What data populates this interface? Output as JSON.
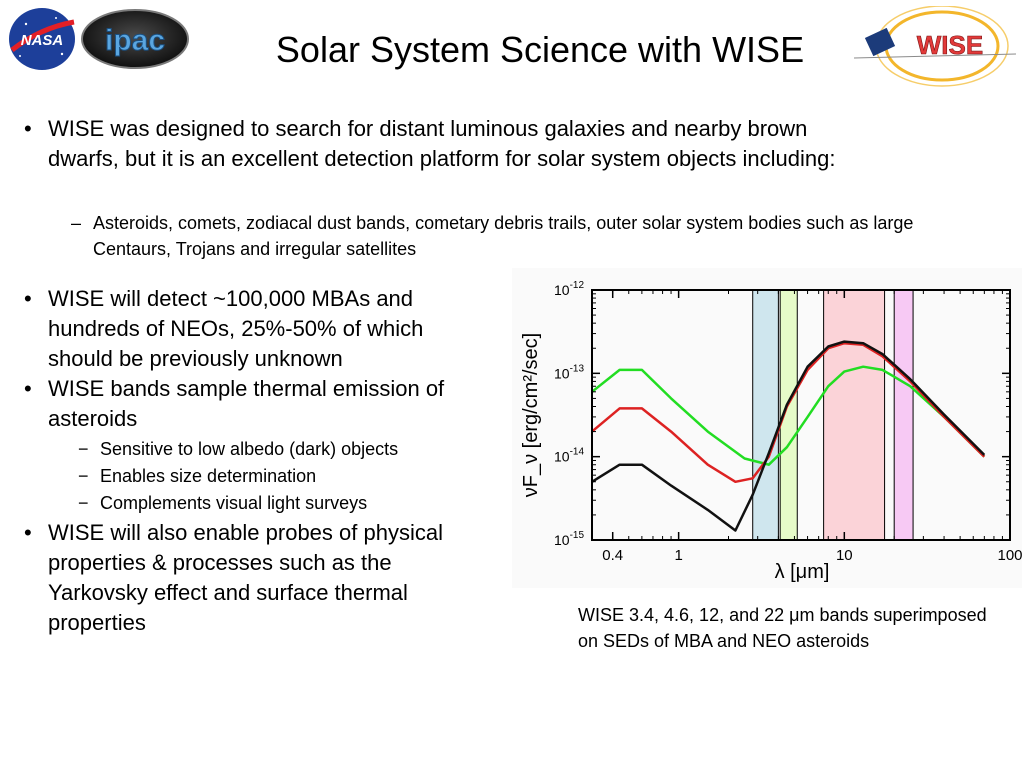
{
  "header": {
    "title": "Solar System Science with WISE",
    "logos": {
      "nasa": "NASA",
      "ipac": "ipac",
      "wise": "WISE"
    }
  },
  "bullets": {
    "b1": "WISE was designed to search for distant luminous galaxies and nearby brown dwarfs, but it is an excellent detection platform for solar system objects including:",
    "b1_sub1": "Asteroids, comets, zodiacal dust bands, cometary debris trails, outer solar system bodies such as large Centaurs, Trojans and irregular satellites",
    "b2": "WISE will detect ~100,000 MBAs and hundreds of NEOs, 25%-50% of which should be previously unknown",
    "b3": "WISE bands sample thermal emission of asteroids",
    "b3_sub1": "Sensitive to low albedo (dark) objects",
    "b3_sub2": "Enables size determination",
    "b3_sub3": "Complements visual light surveys",
    "b4": "WISE will also enable probes of physical properties & processes such as the Yarkovsky effect and surface thermal properties"
  },
  "caption": "WISE 3.4, 4.6, 12, and 22 μm bands superimposed on SEDs of MBA and NEO asteroids",
  "chart_data": {
    "type": "line",
    "xscale": "log",
    "yscale": "log",
    "xlim": [
      0.3,
      100
    ],
    "ylim": [
      1e-15,
      1e-12
    ],
    "xlabel": "λ [μm]",
    "ylabel": "νF_ν [erg/cm²/sec]",
    "x_ticks": [
      {
        "value": 0.4,
        "label": "0.4"
      },
      {
        "value": 1,
        "label": "1"
      },
      {
        "value": 10,
        "label": "10"
      },
      {
        "value": 100,
        "label": "100"
      }
    ],
    "y_ticks": [
      {
        "value": 1e-12,
        "base": "10",
        "exp": "-12"
      },
      {
        "value": 1e-13,
        "base": "10",
        "exp": "-13"
      },
      {
        "value": 1e-14,
        "base": "10",
        "exp": "-14"
      },
      {
        "value": 1e-15,
        "base": "10",
        "exp": "-15"
      }
    ],
    "bands": [
      {
        "from": 2.8,
        "to": 4.0,
        "color": "#cfe6ee"
      },
      {
        "from": 4.1,
        "to": 5.2,
        "color": "#e6fbc9"
      },
      {
        "from": 7.5,
        "to": 17.5,
        "color": "#fbd3d8"
      },
      {
        "from": 20.0,
        "to": 26.0,
        "color": "#f7c9f4"
      }
    ],
    "series": [
      {
        "color": "#22dd22",
        "x": [
          0.3,
          0.44,
          0.6,
          0.9,
          1.5,
          2.5,
          3.5,
          4.5,
          6,
          8,
          10,
          13,
          17,
          25,
          40,
          70
        ],
        "y": [
          6e-14,
          1.1e-13,
          1.1e-13,
          5e-14,
          2e-14,
          9.5e-15,
          8e-15,
          1.3e-14,
          3e-14,
          7e-14,
          1.05e-13,
          1.2e-13,
          1.1e-13,
          7e-14,
          3e-14,
          1e-14
        ]
      },
      {
        "color": "#dd2222",
        "x": [
          0.3,
          0.44,
          0.6,
          0.9,
          1.5,
          2.2,
          2.8,
          3.5,
          4.5,
          6,
          8,
          10,
          13,
          17,
          25,
          40,
          70
        ],
        "y": [
          2e-14,
          3.8e-14,
          3.8e-14,
          2e-14,
          8e-15,
          5e-15,
          5.5e-15,
          1e-14,
          4e-14,
          1.1e-13,
          2e-13,
          2.3e-13,
          2.2e-13,
          1.6e-13,
          8e-14,
          3e-14,
          1e-14
        ]
      },
      {
        "color": "#111111",
        "x": [
          0.3,
          0.44,
          0.6,
          0.9,
          1.5,
          2.2,
          2.8,
          3.5,
          4.5,
          6,
          8,
          10,
          13,
          17,
          25,
          40,
          70
        ],
        "y": [
          5e-15,
          8e-15,
          8e-15,
          4.5e-15,
          2.3e-15,
          1.3e-15,
          3.5e-15,
          1.1e-14,
          4.2e-14,
          1.2e-13,
          2.1e-13,
          2.4e-13,
          2.3e-13,
          1.7e-13,
          8.5e-14,
          3.2e-14,
          1.05e-14
        ]
      }
    ]
  }
}
